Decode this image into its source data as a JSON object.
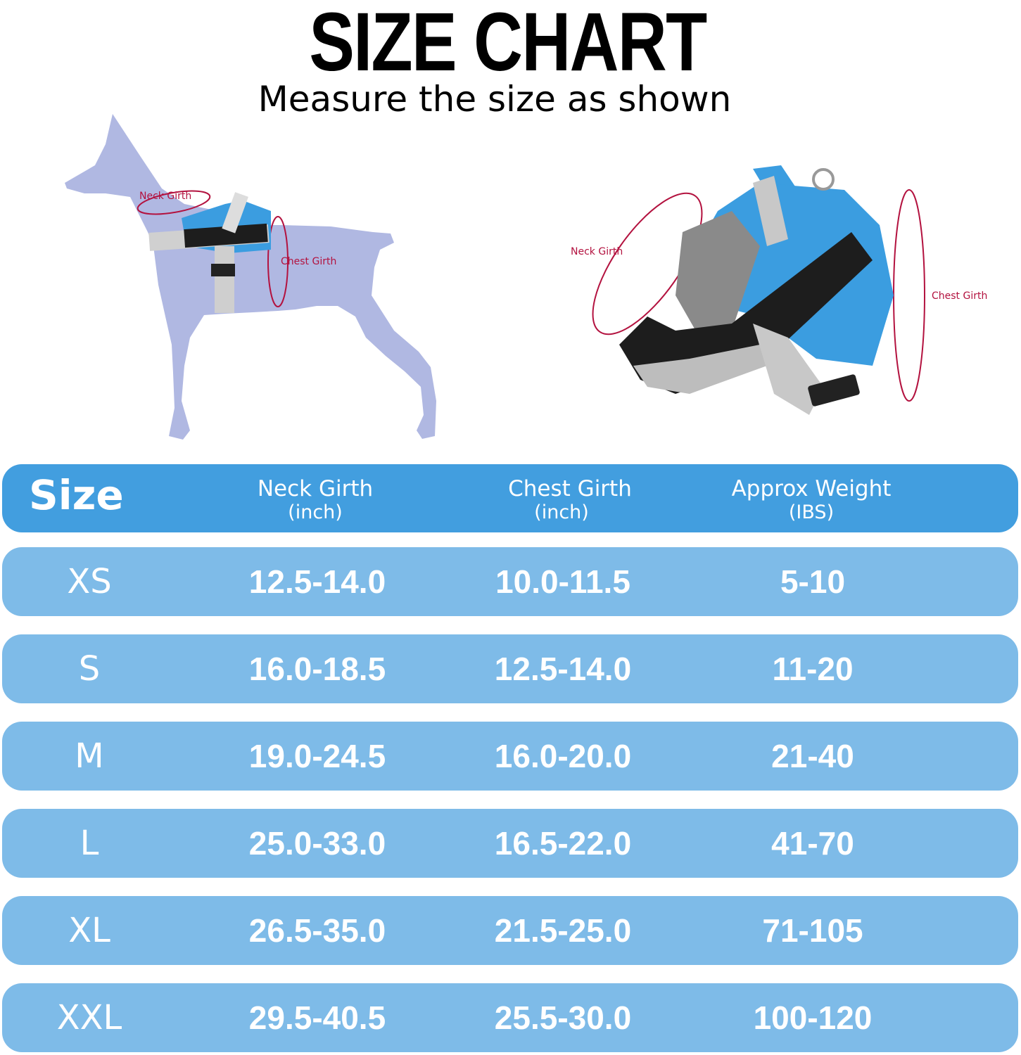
{
  "title": "SIZE CHART",
  "subtitle": "Measure the size as shown",
  "illustration": {
    "dog_neck_label": "Neck Girth",
    "dog_chest_label": "Chest Girth",
    "harness_neck_label": "Neck Girth",
    "harness_chest_label": "Chest Girth"
  },
  "colors": {
    "header": "#429edf",
    "row": "#7ebbe8",
    "annotation": "#b3123f",
    "dog": "#b0b8e2",
    "harness": "#3b9de0"
  },
  "table": {
    "headers": {
      "size": "Size",
      "neck": "Neck Girth",
      "neck_unit": "(inch)",
      "chest": "Chest Girth",
      "chest_unit": "(inch)",
      "weight": "Approx Weight",
      "weight_unit": "(IBS)"
    },
    "rows": [
      {
        "size": "XS",
        "neck": "12.5-14.0",
        "chest": "10.0-11.5",
        "weight": "5-10"
      },
      {
        "size": "S",
        "neck": "16.0-18.5",
        "chest": "12.5-14.0",
        "weight": "11-20"
      },
      {
        "size": "M",
        "neck": "19.0-24.5",
        "chest": "16.0-20.0",
        "weight": "21-40"
      },
      {
        "size": "L",
        "neck": "25.0-33.0",
        "chest": "16.5-22.0",
        "weight": "41-70"
      },
      {
        "size": "XL",
        "neck": "26.5-35.0",
        "chest": "21.5-25.0",
        "weight": "71-105"
      },
      {
        "size": "XXL",
        "neck": "29.5-40.5",
        "chest": "25.5-30.0",
        "weight": "100-120"
      }
    ]
  }
}
